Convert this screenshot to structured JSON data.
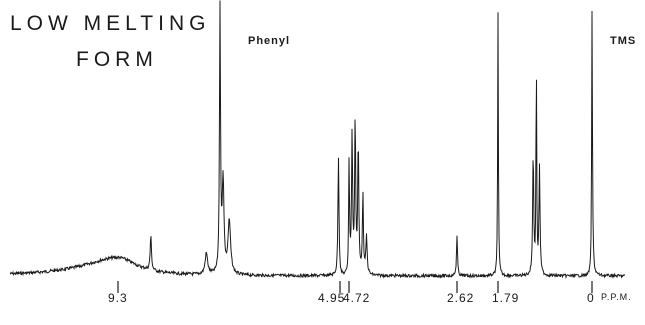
{
  "chart_data": {
    "type": "line",
    "title_line1": "LOW MELTING",
    "title_line2": "FORM",
    "x_unit": "P.P.M.",
    "x_direction": "reversed",
    "grid": false,
    "annotations": [
      {
        "text": "Phenyl",
        "x": 7.2
      },
      {
        "text": "TMS",
        "x": 0.0
      }
    ],
    "tick_labels": [
      {
        "text": "9.3",
        "x": 9.3
      },
      {
        "text": "4.95",
        "x": 4.95
      },
      {
        "text": "4.72",
        "x": 4.72
      },
      {
        "text": "2.62",
        "x": 2.62
      },
      {
        "text": "1.79",
        "x": 1.79
      },
      {
        "text": "0",
        "x": 0.0
      }
    ],
    "peaks": [
      {
        "x": 9.3,
        "height": 0.07,
        "width": 0.45
      },
      {
        "x": 8.65,
        "height": 0.13,
        "width": 0.015
      },
      {
        "x": 7.55,
        "height": 0.08,
        "width": 0.03
      },
      {
        "x": 7.28,
        "height": 1.0,
        "width": 0.012
      },
      {
        "x": 7.22,
        "height": 0.35,
        "width": 0.02
      },
      {
        "x": 7.1,
        "height": 0.2,
        "width": 0.03
      },
      {
        "x": 4.98,
        "height": 0.45,
        "width": 0.012
      },
      {
        "x": 4.72,
        "height": 0.42,
        "width": 0.012
      },
      {
        "x": 4.66,
        "height": 0.52,
        "width": 0.012
      },
      {
        "x": 4.6,
        "height": 0.58,
        "width": 0.012
      },
      {
        "x": 4.54,
        "height": 0.5,
        "width": 0.012
      },
      {
        "x": 4.45,
        "height": 0.3,
        "width": 0.012
      },
      {
        "x": 4.38,
        "height": 0.14,
        "width": 0.015
      },
      {
        "x": 2.62,
        "height": 0.15,
        "width": 0.012
      },
      {
        "x": 1.79,
        "height": 1.0,
        "width": 0.008
      },
      {
        "x": 1.12,
        "height": 0.46,
        "width": 0.012
      },
      {
        "x": 1.06,
        "height": 0.82,
        "width": 0.008
      },
      {
        "x": 1.0,
        "height": 0.4,
        "width": 0.012
      },
      {
        "x": 0.0,
        "height": 1.0,
        "width": 0.008
      }
    ]
  }
}
